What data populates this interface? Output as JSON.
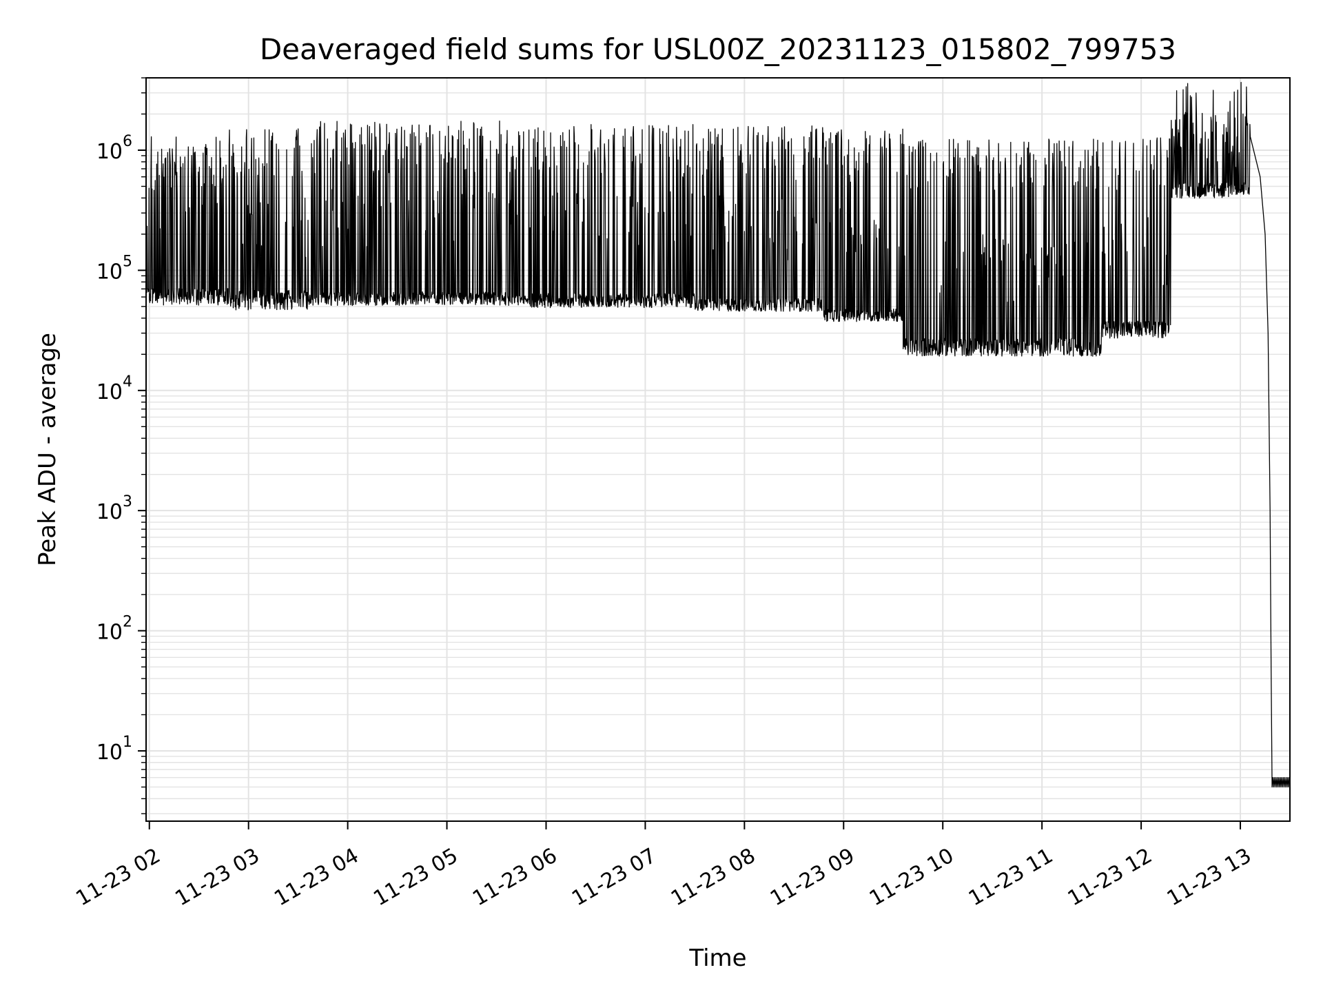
{
  "chart_data": {
    "type": "line",
    "title": "Deaveraged field sums for USL00Z_20231123_015802_799753",
    "xlabel": "Time",
    "ylabel": "Peak ADU - average",
    "y_scale": "log",
    "ylim": [
      2.6,
      4000000
    ],
    "xlim": [
      "2023-11-23 01:58",
      "2023-11-23 13:30"
    ],
    "x_tick_labels": [
      "11-23 02",
      "11-23 03",
      "11-23 04",
      "11-23 05",
      "11-23 06",
      "11-23 07",
      "11-23 08",
      "11-23 09",
      "11-23 10",
      "11-23 11",
      "11-23 12",
      "11-23 13"
    ],
    "x_tick_hours": [
      2,
      3,
      4,
      5,
      6,
      7,
      8,
      9,
      10,
      11,
      12,
      13
    ],
    "y_ticks": [
      {
        "base": "10",
        "exp": "1",
        "value": 10
      },
      {
        "base": "10",
        "exp": "2",
        "value": 100
      },
      {
        "base": "10",
        "exp": "3",
        "value": 1000
      },
      {
        "base": "10",
        "exp": "4",
        "value": 10000
      },
      {
        "base": "10",
        "exp": "5",
        "value": 100000
      },
      {
        "base": "10",
        "exp": "6",
        "value": 1000000
      }
    ],
    "grid": true,
    "line_color": "#000000",
    "grid_color": "#e3e3e3",
    "series": [
      {
        "segments": [
          {
            "start_hour": 1.97,
            "end_hour": 2.8,
            "baseline": 65000,
            "peak": 1300000,
            "floor": 38000
          },
          {
            "start_hour": 2.8,
            "end_hour": 3.6,
            "baseline": 62000,
            "peak": 1550000,
            "floor": 33000
          },
          {
            "start_hour": 3.6,
            "end_hour": 5.7,
            "baseline": 62000,
            "peak": 1750000,
            "floor": 40000
          },
          {
            "start_hour": 5.7,
            "end_hour": 7.5,
            "baseline": 60000,
            "peak": 1650000,
            "floor": 38000
          },
          {
            "start_hour": 7.5,
            "end_hour": 8.8,
            "baseline": 55000,
            "peak": 1600000,
            "floor": 36000
          },
          {
            "start_hour": 8.8,
            "end_hour": 9.6,
            "baseline": 45000,
            "peak": 1500000,
            "floor": 30000
          },
          {
            "start_hour": 9.6,
            "end_hour": 11.6,
            "baseline": 25000,
            "peak": 1250000,
            "floor": 14000
          },
          {
            "start_hour": 11.6,
            "end_hour": 12.3,
            "baseline": 35000,
            "peak": 1300000,
            "floor": 20000
          },
          {
            "start_hour": 12.3,
            "end_hour": 13.1,
            "baseline": 500000,
            "peak": 2000000,
            "floor": 300000
          }
        ],
        "decay": [
          {
            "hour": 13.1,
            "value": 1300000
          },
          {
            "hour": 13.2,
            "value": 600000
          },
          {
            "hour": 13.25,
            "value": 200000
          },
          {
            "hour": 13.28,
            "value": 30000
          },
          {
            "hour": 13.3,
            "value": 1000
          },
          {
            "hour": 13.31,
            "value": 50
          },
          {
            "hour": 13.32,
            "value": 5
          }
        ],
        "tail": {
          "start_hour": 13.32,
          "end_hour": 13.5,
          "value": 5,
          "upper": 6
        }
      }
    ]
  }
}
